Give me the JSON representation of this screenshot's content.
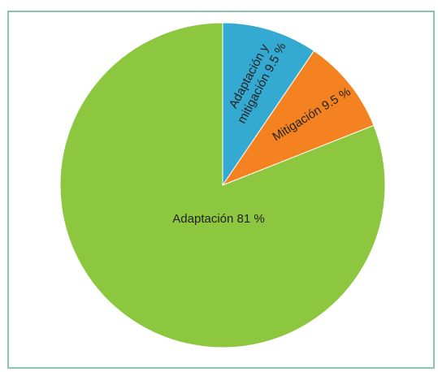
{
  "chart_data": {
    "type": "pie",
    "title": "",
    "slices": [
      {
        "label_lines": [
          "Adaptación y",
          "mitigación 9.5 %"
        ],
        "value": 9.5,
        "color": "#34a9d1"
      },
      {
        "label_lines": [
          "Mitigación 9.5 %"
        ],
        "value": 9.5,
        "color": "#f58220"
      },
      {
        "label_lines": [
          "Adaptación 81 %"
        ],
        "value": 81,
        "color": "#8dc63f"
      }
    ],
    "legend": "none"
  }
}
